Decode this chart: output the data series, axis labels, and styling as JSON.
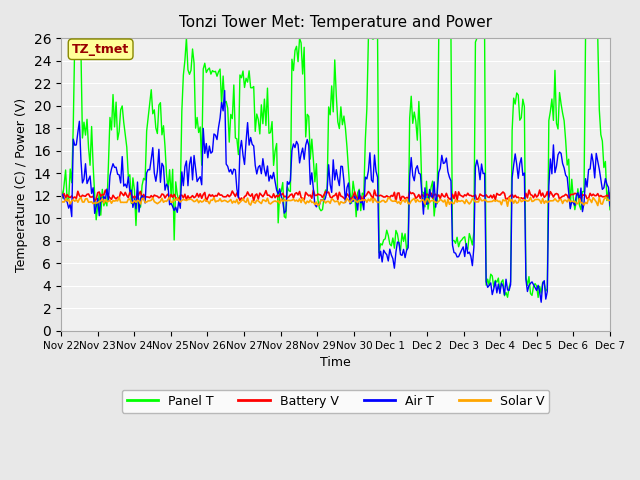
{
  "title": "Tonzi Tower Met: Temperature and Power",
  "xlabel": "Time",
  "ylabel": "Temperature (C) / Power (V)",
  "ylim": [
    0,
    26
  ],
  "yticks": [
    0,
    2,
    4,
    6,
    8,
    10,
    12,
    14,
    16,
    18,
    20,
    22,
    24,
    26
  ],
  "xtick_labels": [
    "Nov 22",
    "Nov 23",
    "Nov 24",
    "Nov 25",
    "Nov 26",
    "Nov 27",
    "Nov 28",
    "Nov 29",
    "Nov 30",
    "Dec 1",
    "Dec 2",
    "Dec 3",
    "Dec 4",
    "Dec 5",
    "Dec 6",
    "Dec 7"
  ],
  "colors": {
    "panel_t": "#00FF00",
    "battery_v": "#FF0000",
    "air_t": "#0000FF",
    "solar_v": "#FFA500"
  },
  "background_color": "#E8E8E8",
  "plot_bg_color": "#F0F0F0",
  "annotation_box_color": "#FFFF99",
  "annotation_text": "TZ_tmet",
  "annotation_text_color": "#990000",
  "legend_labels": [
    "Panel T",
    "Battery V",
    "Air T",
    "Solar V"
  ],
  "n_points": 360
}
